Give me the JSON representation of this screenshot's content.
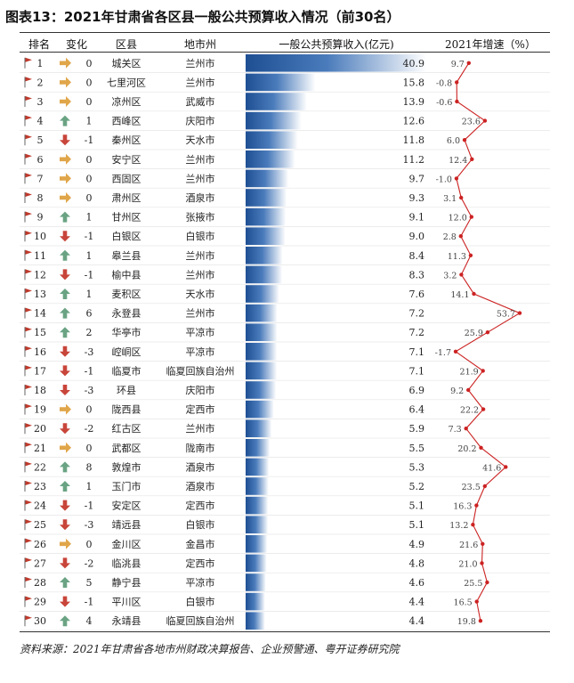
{
  "title": "图表13：2021年甘肃省各区县一般公共预算收入情况（前30名）",
  "headers": {
    "rank": "排名",
    "change": "变化",
    "county": "区县",
    "city": "地市州",
    "revenue": "一般公共预算收入(亿元)",
    "growth": "2021年增速（%）"
  },
  "source": "资料来源：2021年甘肃省各地市州财政决算报告、企业预警通、粤开证券研究院",
  "colors": {
    "bar": "#2a5c9e",
    "flag": "#c0392b",
    "up": "#6aa383",
    "down": "#c8453a",
    "same": "#e0a64a",
    "line": "#cc2222"
  },
  "chart_data": {
    "type": "table",
    "rows": [
      {
        "rank": 1,
        "change": 0,
        "county": "城关区",
        "city": "兰州市",
        "revenue": 40.9,
        "growth": 9.7
      },
      {
        "rank": 2,
        "change": 0,
        "county": "七里河区",
        "city": "兰州市",
        "revenue": 15.8,
        "growth": -0.8
      },
      {
        "rank": 3,
        "change": 0,
        "county": "凉州区",
        "city": "武威市",
        "revenue": 13.9,
        "growth": -0.6
      },
      {
        "rank": 4,
        "change": 1,
        "county": "西峰区",
        "city": "庆阳市",
        "revenue": 12.6,
        "growth": 23.6
      },
      {
        "rank": 5,
        "change": -1,
        "county": "秦州区",
        "city": "天水市",
        "revenue": 11.8,
        "growth": 6.0
      },
      {
        "rank": 6,
        "change": 0,
        "county": "安宁区",
        "city": "兰州市",
        "revenue": 11.2,
        "growth": 12.4
      },
      {
        "rank": 7,
        "change": 0,
        "county": "西固区",
        "city": "兰州市",
        "revenue": 9.7,
        "growth": -1.0
      },
      {
        "rank": 8,
        "change": 0,
        "county": "肃州区",
        "city": "酒泉市",
        "revenue": 9.3,
        "growth": 3.1
      },
      {
        "rank": 9,
        "change": 1,
        "county": "甘州区",
        "city": "张掖市",
        "revenue": 9.1,
        "growth": 12.0
      },
      {
        "rank": 10,
        "change": -1,
        "county": "白银区",
        "city": "白银市",
        "revenue": 9.0,
        "growth": 2.8
      },
      {
        "rank": 11,
        "change": 1,
        "county": "皋兰县",
        "city": "兰州市",
        "revenue": 8.4,
        "growth": 11.3
      },
      {
        "rank": 12,
        "change": -1,
        "county": "榆中县",
        "city": "兰州市",
        "revenue": 8.3,
        "growth": 3.2
      },
      {
        "rank": 13,
        "change": 1,
        "county": "麦积区",
        "city": "天水市",
        "revenue": 7.6,
        "growth": 14.1
      },
      {
        "rank": 14,
        "change": 6,
        "county": "永登县",
        "city": "兰州市",
        "revenue": 7.2,
        "growth": 53.7
      },
      {
        "rank": 15,
        "change": 2,
        "county": "华亭市",
        "city": "平凉市",
        "revenue": 7.2,
        "growth": 25.9
      },
      {
        "rank": 16,
        "change": -3,
        "county": "崆峒区",
        "city": "平凉市",
        "revenue": 7.1,
        "growth": -1.7
      },
      {
        "rank": 17,
        "change": -1,
        "county": "临夏市",
        "city": "临夏回族自治州",
        "revenue": 7.1,
        "growth": 21.9
      },
      {
        "rank": 18,
        "change": -3,
        "county": "环县",
        "city": "庆阳市",
        "revenue": 6.9,
        "growth": 9.2
      },
      {
        "rank": 19,
        "change": 0,
        "county": "陇西县",
        "city": "定西市",
        "revenue": 6.4,
        "growth": 22.2
      },
      {
        "rank": 20,
        "change": -2,
        "county": "红古区",
        "city": "兰州市",
        "revenue": 5.9,
        "growth": 7.3
      },
      {
        "rank": 21,
        "change": 0,
        "county": "武都区",
        "city": "陇南市",
        "revenue": 5.5,
        "growth": 20.2
      },
      {
        "rank": 22,
        "change": 8,
        "county": "敦煌市",
        "city": "酒泉市",
        "revenue": 5.3,
        "growth": 41.6
      },
      {
        "rank": 23,
        "change": 1,
        "county": "玉门市",
        "city": "酒泉市",
        "revenue": 5.2,
        "growth": 23.5
      },
      {
        "rank": 24,
        "change": -1,
        "county": "安定区",
        "city": "定西市",
        "revenue": 5.1,
        "growth": 16.3
      },
      {
        "rank": 25,
        "change": -3,
        "county": "靖远县",
        "city": "白银市",
        "revenue": 5.1,
        "growth": 13.2
      },
      {
        "rank": 26,
        "change": 0,
        "county": "金川区",
        "city": "金昌市",
        "revenue": 4.9,
        "growth": 21.6
      },
      {
        "rank": 27,
        "change": -2,
        "county": "临洮县",
        "city": "定西市",
        "revenue": 4.8,
        "growth": 21.0
      },
      {
        "rank": 28,
        "change": 5,
        "county": "静宁县",
        "city": "平凉市",
        "revenue": 4.6,
        "growth": 25.5
      },
      {
        "rank": 29,
        "change": -1,
        "county": "平川区",
        "city": "白银市",
        "revenue": 4.4,
        "growth": 16.5
      },
      {
        "rank": 30,
        "change": 4,
        "county": "永靖县",
        "city": "临夏回族自治州",
        "revenue": 4.4,
        "growth": 19.8
      }
    ]
  }
}
